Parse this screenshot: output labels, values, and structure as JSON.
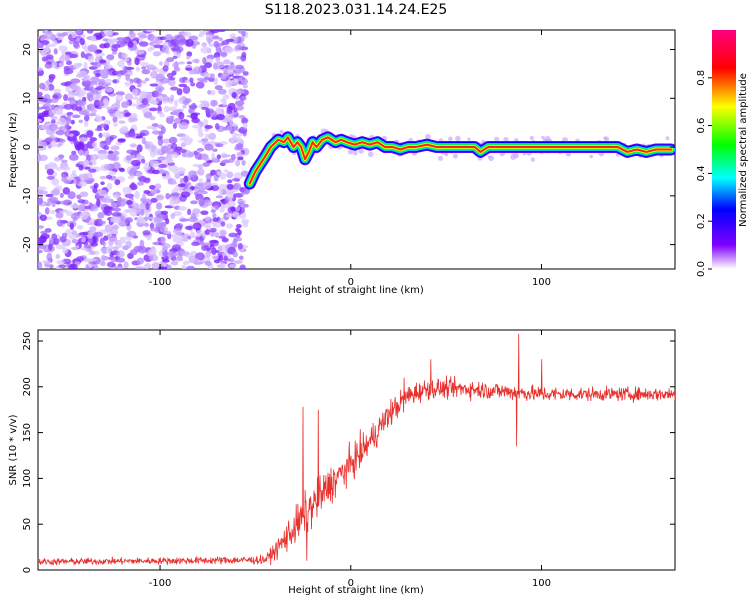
{
  "title": "S118.2023.031.14.24.E25",
  "chart_data": [
    {
      "type": "heatmap",
      "xlabel": "Height of straight line (km)",
      "ylabel": "Frequency (Hz)",
      "xlim": [
        -164,
        170
      ],
      "ylim": [
        -25,
        24
      ],
      "x_ticks": [
        -100,
        0,
        100
      ],
      "y_ticks": [
        -20,
        -10,
        0,
        10,
        20
      ],
      "colorbar": {
        "label": "Normalized spectral amplitude",
        "range": [
          0,
          1
        ],
        "ticks": [
          0.0,
          0.2,
          0.4,
          0.6,
          0.8
        ]
      },
      "noise_region_x": [
        -164,
        -55
      ],
      "signal_trace": [
        [
          -53,
          -7.5
        ],
        [
          -50,
          -5
        ],
        [
          -45,
          -2
        ],
        [
          -42,
          0
        ],
        [
          -38,
          1.5
        ],
        [
          -35,
          1
        ],
        [
          -33,
          2
        ],
        [
          -30,
          0
        ],
        [
          -28,
          1
        ],
        [
          -26,
          0
        ],
        [
          -24,
          -2.5
        ],
        [
          -22,
          -1
        ],
        [
          -20,
          1
        ],
        [
          -18,
          0
        ],
        [
          -15,
          1.5
        ],
        [
          -12,
          2
        ],
        [
          -10,
          1.5
        ],
        [
          -8,
          1
        ],
        [
          -5,
          1.5
        ],
        [
          -2,
          1
        ],
        [
          2,
          0.5
        ],
        [
          6,
          1
        ],
        [
          10,
          0.5
        ],
        [
          14,
          1
        ],
        [
          18,
          0
        ],
        [
          22,
          0
        ],
        [
          26,
          -0.5
        ],
        [
          30,
          0
        ],
        [
          34,
          0
        ],
        [
          40,
          0.5
        ],
        [
          45,
          0
        ],
        [
          55,
          0
        ],
        [
          65,
          0
        ],
        [
          68,
          -1
        ],
        [
          72,
          0
        ],
        [
          80,
          0
        ],
        [
          90,
          0
        ],
        [
          100,
          0
        ],
        [
          110,
          0
        ],
        [
          120,
          0
        ],
        [
          130,
          0
        ],
        [
          140,
          0
        ],
        [
          145,
          -1
        ],
        [
          150,
          -0.5
        ],
        [
          155,
          -1
        ],
        [
          160,
          -0.5
        ],
        [
          168,
          -0.5
        ]
      ]
    },
    {
      "type": "line",
      "xlabel": "Height of straight line (km)",
      "ylabel": "SNR (10 * v/v)",
      "xlim": [
        -164,
        170
      ],
      "ylim": [
        0,
        262
      ],
      "x_ticks": [
        -100,
        0,
        100
      ],
      "y_ticks": [
        0,
        50,
        100,
        150,
        200,
        250
      ],
      "color": "#e8302d",
      "envelope": {
        "x": [
          -164,
          -100,
          -45,
          -40,
          -30,
          -20,
          -10,
          0,
          10,
          20,
          30,
          40,
          60,
          80,
          100,
          120,
          140,
          170
        ],
        "mean": [
          9,
          10,
          11,
          20,
          45,
          70,
          95,
          115,
          140,
          170,
          190,
          198,
          198,
          195,
          192,
          192,
          192,
          192
        ],
        "spread": [
          4,
          4,
          5,
          10,
          22,
          25,
          22,
          20,
          18,
          16,
          14,
          12,
          11,
          10,
          9,
          8,
          8,
          8
        ]
      },
      "peaks": [
        [
          -25,
          178
        ],
        [
          -23,
          10
        ],
        [
          -17,
          175
        ],
        [
          28,
          210
        ],
        [
          42,
          230
        ],
        [
          88,
          258
        ],
        [
          87,
          135
        ],
        [
          100,
          230
        ]
      ]
    }
  ]
}
